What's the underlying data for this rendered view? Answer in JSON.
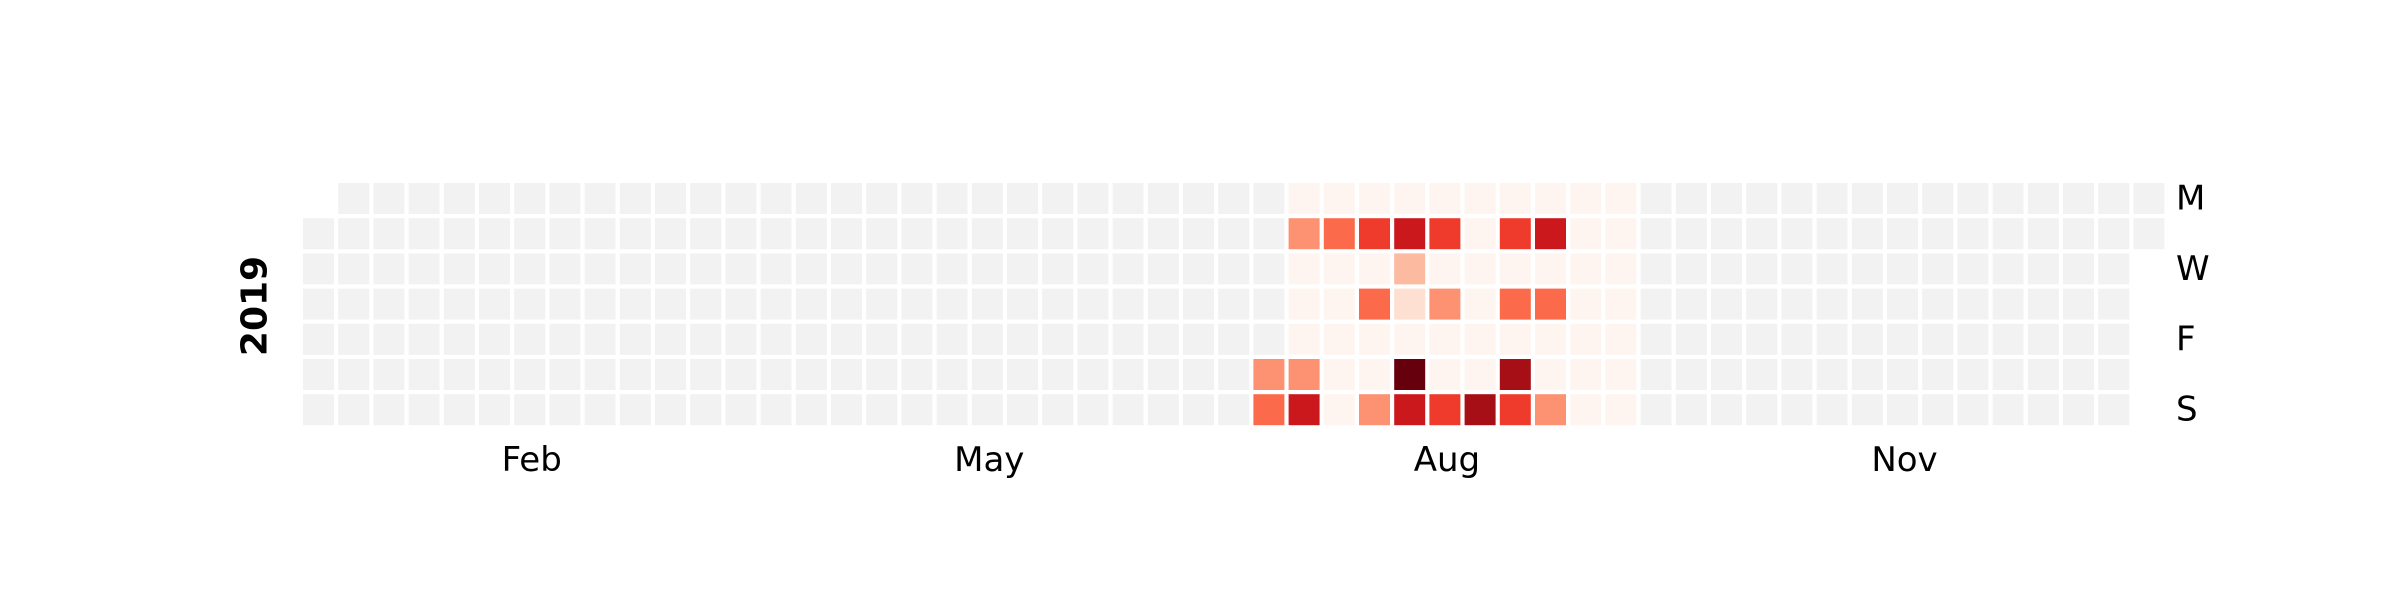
{
  "chart_data": {
    "type": "heatmap",
    "title": "",
    "year": "2019",
    "first_week_start_row": 1,
    "day_labels": [
      {
        "row": 0,
        "label": "M"
      },
      {
        "row": 2,
        "label": "W"
      },
      {
        "row": 4,
        "label": "F"
      },
      {
        "row": 6,
        "label": "S"
      }
    ],
    "month_labels": [
      {
        "week": 6,
        "label": "Feb"
      },
      {
        "week": 19,
        "label": "May"
      },
      {
        "week": 32,
        "label": "Aug"
      },
      {
        "week": 45,
        "label": "Nov"
      }
    ],
    "colors": {
      "empty": "#f2f2f2",
      "scale": [
        "#fff5f0",
        "#fee0d2",
        "#fcbba1",
        "#fc9272",
        "#fb6a4a",
        "#ef3b2c",
        "#cb181d",
        "#a50f15",
        "#67000d"
      ]
    },
    "value_range": [
      0,
      8
    ],
    "active_weeks": [
      28,
      37
    ],
    "values": [
      {
        "week": 27,
        "row": 5,
        "value": 3
      },
      {
        "week": 27,
        "row": 6,
        "value": 4
      },
      {
        "week": 28,
        "row": 1,
        "value": 3
      },
      {
        "week": 28,
        "row": 5,
        "value": 2.5
      },
      {
        "week": 28,
        "row": 6,
        "value": 5.5
      },
      {
        "week": 29,
        "row": 1,
        "value": 4
      },
      {
        "week": 30,
        "row": 1,
        "value": 4.5
      },
      {
        "week": 30,
        "row": 3,
        "value": 3.5
      },
      {
        "week": 30,
        "row": 6,
        "value": 3
      },
      {
        "week": 31,
        "row": 1,
        "value": 5.5
      },
      {
        "week": 31,
        "row": 2,
        "value": 1.5
      },
      {
        "week": 31,
        "row": 3,
        "value": 0.5
      },
      {
        "week": 31,
        "row": 5,
        "value": 8
      },
      {
        "week": 31,
        "row": 6,
        "value": 5.5
      },
      {
        "week": 32,
        "row": 1,
        "value": 5
      },
      {
        "week": 32,
        "row": 3,
        "value": 2.5
      },
      {
        "week": 32,
        "row": 6,
        "value": 5
      },
      {
        "week": 33,
        "row": 6,
        "value": 6.5
      },
      {
        "week": 34,
        "row": 1,
        "value": 4.5
      },
      {
        "week": 34,
        "row": 3,
        "value": 3.5
      },
      {
        "week": 34,
        "row": 5,
        "value": 7
      },
      {
        "week": 34,
        "row": 6,
        "value": 5
      },
      {
        "week": 35,
        "row": 1,
        "value": 6
      },
      {
        "week": 35,
        "row": 3,
        "value": 4
      },
      {
        "week": 35,
        "row": 6,
        "value": 2.5
      }
    ]
  }
}
